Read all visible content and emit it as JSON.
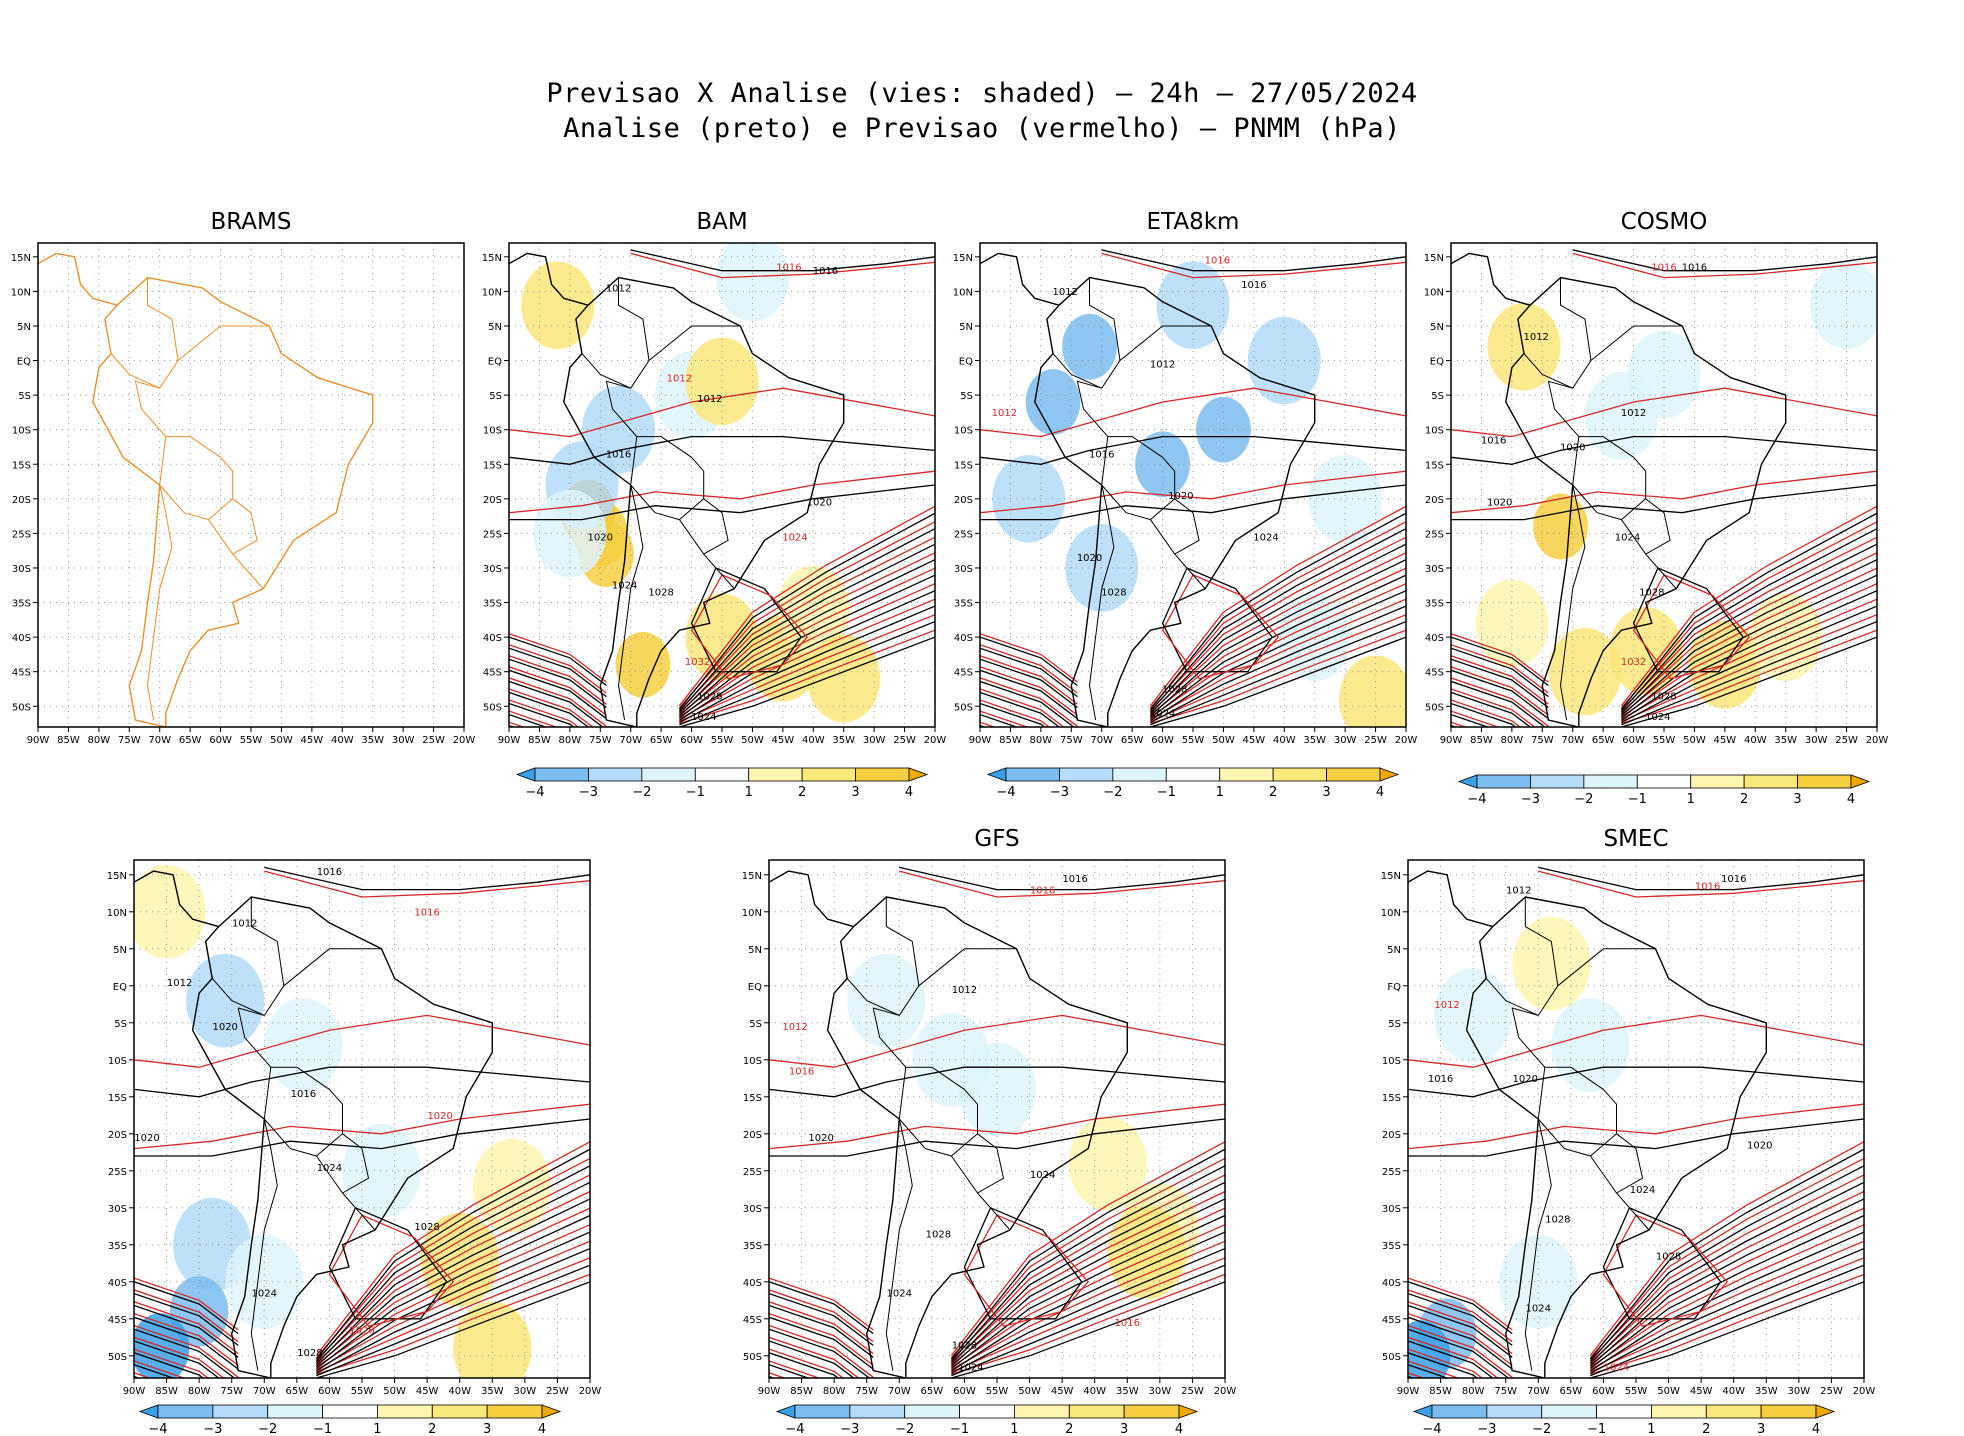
{
  "figure": {
    "title_line1": "Previsao X Analise (vies: shaded) — 24h — 27/05/2024",
    "title_line2": "Analise (preto) e Previsao (vermelho) — PNMM (hPa)"
  },
  "colors": {
    "analysis_contour": "#000000",
    "forecast_contour": "#d62828",
    "coastline_brams": "#e8902e",
    "bias_neg4": "#3aa0e8",
    "bias_neg3": "#7bbdf0",
    "bias_neg2": "#b4dbf8",
    "bias_neg1": "#def4fb",
    "bias_pos1": "#fdf6b0",
    "bias_pos2": "#fbe87a",
    "bias_pos3": "#f5cf3f",
    "bias_pos4": "#f0a800"
  },
  "colorbar": {
    "labels": [
      "−4",
      "−3",
      "−2",
      "−1",
      "1",
      "2",
      "3",
      "4"
    ]
  },
  "chart_data": [
    {
      "type": "heatmap",
      "title": "BRAMS",
      "has_data": false,
      "x_ticks": [
        "90W",
        "85W",
        "80W",
        "75W",
        "70W",
        "65W",
        "60W",
        "55W",
        "50W",
        "45W",
        "40W",
        "35W",
        "30W",
        "25W",
        "20W"
      ],
      "y_ticks": [
        "15N",
        "10N",
        "5N",
        "EQ",
        "5S",
        "10S",
        "15S",
        "20S",
        "25S",
        "30S",
        "35S",
        "40S",
        "45S",
        "50S"
      ],
      "xlim": [
        -90,
        -20
      ],
      "ylim": [
        -53,
        17
      ],
      "contour_labels": []
    },
    {
      "type": "heatmap",
      "title": "BAM",
      "has_data": true,
      "x_ticks": [
        "90W",
        "85W",
        "80W",
        "75W",
        "70W",
        "65W",
        "60W",
        "55W",
        "50W",
        "45W",
        "40W",
        "35W",
        "30W",
        "25W",
        "20W"
      ],
      "y_ticks": [
        "15N",
        "10N",
        "5N",
        "EQ",
        "5S",
        "10S",
        "15S",
        "20S",
        "25S",
        "30S",
        "35S",
        "40S",
        "45S",
        "50S"
      ],
      "xlim": [
        -90,
        -20
      ],
      "ylim": [
        -53,
        17
      ],
      "bias_cells": [
        {
          "lon": -77,
          "lat": -22,
          "v": 4
        },
        {
          "lon": -75,
          "lat": -25,
          "v": 3
        },
        {
          "lon": -74,
          "lat": -28,
          "v": 3
        },
        {
          "lon": -68,
          "lat": -44,
          "v": 3
        },
        {
          "lon": -55,
          "lat": -40,
          "v": 2
        },
        {
          "lon": -45,
          "lat": -43,
          "v": 2
        },
        {
          "lon": -40,
          "lat": -36,
          "v": 1
        },
        {
          "lon": -35,
          "lat": -46,
          "v": 2
        },
        {
          "lon": -78,
          "lat": -18,
          "v": -2
        },
        {
          "lon": -80,
          "lat": -25,
          "v": -1
        },
        {
          "lon": -72,
          "lat": -10,
          "v": -2
        },
        {
          "lon": -60,
          "lat": -5,
          "v": -1
        },
        {
          "lon": -50,
          "lat": 12,
          "v": -1
        },
        {
          "lon": -82,
          "lat": 8,
          "v": 2
        },
        {
          "lon": -55,
          "lat": -3,
          "v": 2
        }
      ],
      "contour_labels": [
        {
          "text": "1016",
          "lon": -44,
          "lat": 13,
          "color": "forecast"
        },
        {
          "text": "1016",
          "lon": -38,
          "lat": 12.5,
          "color": "analysis"
        },
        {
          "text": "1012",
          "lon": -72,
          "lat": 10,
          "color": "analysis"
        },
        {
          "text": "1012",
          "lon": -57,
          "lat": -6,
          "color": "analysis"
        },
        {
          "text": "1012",
          "lon": -62,
          "lat": -3,
          "color": "forecast"
        },
        {
          "text": "1016",
          "lon": -72,
          "lat": -14,
          "color": "analysis"
        },
        {
          "text": "1020",
          "lon": -75,
          "lat": -26,
          "color": "analysis"
        },
        {
          "text": "1024",
          "lon": -71,
          "lat": -33,
          "color": "analysis"
        },
        {
          "text": "1028",
          "lon": -65,
          "lat": -34,
          "color": "analysis"
        },
        {
          "text": "1020",
          "lon": -39,
          "lat": -21,
          "color": "analysis"
        },
        {
          "text": "1024",
          "lon": -43,
          "lat": -26,
          "color": "forecast"
        },
        {
          "text": "1032",
          "lon": -59,
          "lat": -44,
          "color": "forecast"
        },
        {
          "text": "1028",
          "lon": -57,
          "lat": -49,
          "color": "analysis"
        },
        {
          "text": "1024",
          "lon": -58,
          "lat": -52,
          "color": "analysis"
        }
      ]
    },
    {
      "type": "heatmap",
      "title": "ETA8km",
      "has_data": true,
      "x_ticks": [
        "90W",
        "85W",
        "80W",
        "75W",
        "70W",
        "65W",
        "60W",
        "55W",
        "50W",
        "45W",
        "40W",
        "35W",
        "30W",
        "25W",
        "20W"
      ],
      "y_ticks": [
        "15N",
        "10N",
        "5N",
        "EQ",
        "5S",
        "10S",
        "15S",
        "20S",
        "25S",
        "30S",
        "35S",
        "40S",
        "45S",
        "50S"
      ],
      "xlim": [
        -90,
        -20
      ],
      "ylim": [
        -53,
        17
      ],
      "bias_cells": [
        {
          "lon": -78,
          "lat": -6,
          "v": -3
        },
        {
          "lon": -72,
          "lat": 2,
          "v": -3
        },
        {
          "lon": -60,
          "lat": -15,
          "v": -3
        },
        {
          "lon": -50,
          "lat": -10,
          "v": -3
        },
        {
          "lon": -82,
          "lat": -20,
          "v": -2
        },
        {
          "lon": -70,
          "lat": -30,
          "v": -2
        },
        {
          "lon": -40,
          "lat": 0,
          "v": -2
        },
        {
          "lon": -30,
          "lat": -20,
          "v": -1
        },
        {
          "lon": -55,
          "lat": 8,
          "v": -2
        },
        {
          "lon": -35,
          "lat": -40,
          "v": -1
        },
        {
          "lon": -25,
          "lat": -49,
          "v": 2
        }
      ],
      "contour_labels": [
        {
          "text": "1016",
          "lon": -51,
          "lat": 14,
          "color": "forecast"
        },
        {
          "text": "1016",
          "lon": -45,
          "lat": 10.5,
          "color": "analysis"
        },
        {
          "text": "1012",
          "lon": -76,
          "lat": 9.5,
          "color": "analysis"
        },
        {
          "text": "1012",
          "lon": -60,
          "lat": -1,
          "color": "analysis"
        },
        {
          "text": "1012",
          "lon": -86,
          "lat": -8,
          "color": "forecast"
        },
        {
          "text": "1016",
          "lon": -70,
          "lat": -14,
          "color": "analysis"
        },
        {
          "text": "1020",
          "lon": -57,
          "lat": -20,
          "color": "analysis"
        },
        {
          "text": "1024",
          "lon": -43,
          "lat": -26,
          "color": "analysis"
        },
        {
          "text": "1020",
          "lon": -72,
          "lat": -29,
          "color": "analysis"
        },
        {
          "text": "1028",
          "lon": -68,
          "lat": -34,
          "color": "analysis"
        },
        {
          "text": "1028",
          "lon": -58,
          "lat": -48,
          "color": "analysis"
        },
        {
          "text": "1024",
          "lon": -60,
          "lat": -51.5,
          "color": "analysis"
        }
      ]
    },
    {
      "type": "heatmap",
      "title": "COSMO",
      "has_data": true,
      "x_ticks": [
        "90W",
        "85W",
        "80W",
        "75W",
        "70W",
        "65W",
        "60W",
        "55W",
        "50W",
        "45W",
        "40W",
        "35W",
        "30W",
        "25W",
        "20W"
      ],
      "y_ticks": [
        "15N",
        "10N",
        "5N",
        "EQ",
        "5S",
        "10S",
        "15S",
        "20S",
        "25S",
        "30S",
        "35S",
        "40S",
        "45S",
        "50S"
      ],
      "xlim": [
        -90,
        -20
      ],
      "ylim": [
        -53,
        17
      ],
      "bias_cells": [
        {
          "lon": -72,
          "lat": -24,
          "v": 3
        },
        {
          "lon": -68,
          "lat": -45,
          "v": 2
        },
        {
          "lon": -58,
          "lat": -42,
          "v": 2
        },
        {
          "lon": -45,
          "lat": -44,
          "v": 2
        },
        {
          "lon": -35,
          "lat": -40,
          "v": 1
        },
        {
          "lon": -80,
          "lat": -38,
          "v": 1
        },
        {
          "lon": -62,
          "lat": -8,
          "v": -1
        },
        {
          "lon": -55,
          "lat": -2,
          "v": -1
        },
        {
          "lon": -25,
          "lat": 8,
          "v": -1
        },
        {
          "lon": -78,
          "lat": 2,
          "v": 2
        }
      ],
      "contour_labels": [
        {
          "text": "1016",
          "lon": -55,
          "lat": 13,
          "color": "forecast"
        },
        {
          "text": "1016",
          "lon": -50,
          "lat": 13,
          "color": "analysis"
        },
        {
          "text": "1012",
          "lon": -76,
          "lat": 3,
          "color": "analysis"
        },
        {
          "text": "1012",
          "lon": -60,
          "lat": -8,
          "color": "analysis"
        },
        {
          "text": "1016",
          "lon": -83,
          "lat": -12,
          "color": "analysis"
        },
        {
          "text": "1020",
          "lon": -70,
          "lat": -13,
          "color": "analysis"
        },
        {
          "text": "1020",
          "lon": -82,
          "lat": -21,
          "color": "analysis"
        },
        {
          "text": "1024",
          "lon": -61,
          "lat": -26,
          "color": "analysis"
        },
        {
          "text": "1028",
          "lon": -57,
          "lat": -34,
          "color": "analysis"
        },
        {
          "text": "1032",
          "lon": -60,
          "lat": -44,
          "color": "forecast"
        },
        {
          "text": "1028",
          "lon": -55,
          "lat": -49,
          "color": "analysis"
        },
        {
          "text": "1024",
          "lon": -56,
          "lat": -52,
          "color": "analysis"
        }
      ]
    },
    {
      "type": "heatmap",
      "title": "",
      "has_data": true,
      "x_ticks": [
        "90W",
        "85W",
        "80W",
        "75W",
        "70W",
        "65W",
        "60W",
        "55W",
        "50W",
        "45W",
        "40W",
        "35W",
        "30W",
        "25W",
        "20W"
      ],
      "y_ticks": [
        "15N",
        "10N",
        "5N",
        "EQ",
        "5S",
        "10S",
        "15S",
        "20S",
        "25S",
        "30S",
        "35S",
        "40S",
        "45S",
        "50S"
      ],
      "xlim": [
        -90,
        -20
      ],
      "ylim": [
        -53,
        17
      ],
      "bias_cells": [
        {
          "lon": -85,
          "lat": 10,
          "v": 1
        },
        {
          "lon": -76,
          "lat": -2,
          "v": -2
        },
        {
          "lon": -64,
          "lat": -8,
          "v": -1
        },
        {
          "lon": -78,
          "lat": -35,
          "v": -2
        },
        {
          "lon": -80,
          "lat": -44,
          "v": -3
        },
        {
          "lon": -86,
          "lat": -49,
          "v": -4
        },
        {
          "lon": -70,
          "lat": -40,
          "v": -1
        },
        {
          "lon": -40,
          "lat": -37,
          "v": 2
        },
        {
          "lon": -35,
          "lat": -49,
          "v": 2
        },
        {
          "lon": -32,
          "lat": -27,
          "v": 1
        },
        {
          "lon": -52,
          "lat": -25,
          "v": -1
        }
      ],
      "contour_labels": [
        {
          "text": "1016",
          "lon": -60,
          "lat": 15,
          "color": "analysis"
        },
        {
          "text": "1016",
          "lon": -45,
          "lat": 9.5,
          "color": "forecast"
        },
        {
          "text": "1012",
          "lon": -73,
          "lat": 8,
          "color": "analysis"
        },
        {
          "text": "1012",
          "lon": -83,
          "lat": 0,
          "color": "analysis"
        },
        {
          "text": "1020",
          "lon": -76,
          "lat": -6,
          "color": "analysis"
        },
        {
          "text": "1016",
          "lon": -64,
          "lat": -15,
          "color": "analysis"
        },
        {
          "text": "1020",
          "lon": -88,
          "lat": -21,
          "color": "analysis"
        },
        {
          "text": "1020",
          "lon": -43,
          "lat": -18,
          "color": "forecast"
        },
        {
          "text": "1024",
          "lon": -60,
          "lat": -25,
          "color": "analysis"
        },
        {
          "text": "1028",
          "lon": -45,
          "lat": -33,
          "color": "analysis"
        },
        {
          "text": "1024",
          "lon": -70,
          "lat": -42,
          "color": "analysis"
        },
        {
          "text": "1026",
          "lon": -55,
          "lat": -47,
          "color": "forecast"
        },
        {
          "text": "1028",
          "lon": -63,
          "lat": -50,
          "color": "analysis"
        }
      ]
    },
    {
      "type": "heatmap",
      "title": "GFS",
      "has_data": true,
      "x_ticks": [
        "90W",
        "85W",
        "80W",
        "75W",
        "70W",
        "65W",
        "60W",
        "55W",
        "50W",
        "45W",
        "40W",
        "35W",
        "30W",
        "25W",
        "20W"
      ],
      "y_ticks": [
        "15N",
        "10N",
        "5N",
        "EQ",
        "5S",
        "10S",
        "15S",
        "20S",
        "25S",
        "30S",
        "35S",
        "40S",
        "45S",
        "50S"
      ],
      "xlim": [
        -90,
        -20
      ],
      "ylim": [
        -53,
        17
      ],
      "bias_cells": [
        {
          "lon": -62,
          "lat": -10,
          "v": -1
        },
        {
          "lon": -55,
          "lat": -14,
          "v": -1
        },
        {
          "lon": -72,
          "lat": -2,
          "v": -1
        },
        {
          "lon": -30,
          "lat": -33,
          "v": 1
        },
        {
          "lon": -32,
          "lat": -36,
          "v": 2
        },
        {
          "lon": -38,
          "lat": -24,
          "v": 1
        }
      ],
      "contour_labels": [
        {
          "text": "1016",
          "lon": -43,
          "lat": 14,
          "color": "analysis"
        },
        {
          "text": "1016",
          "lon": -48,
          "lat": 12.5,
          "color": "forecast"
        },
        {
          "text": "1012",
          "lon": -86,
          "lat": -6,
          "color": "forecast"
        },
        {
          "text": "1012",
          "lon": -60,
          "lat": -1,
          "color": "analysis"
        },
        {
          "text": "1016",
          "lon": -85,
          "lat": -12,
          "color": "forecast"
        },
        {
          "text": "1020",
          "lon": -82,
          "lat": -21,
          "color": "analysis"
        },
        {
          "text": "1024",
          "lon": -48,
          "lat": -26,
          "color": "analysis"
        },
        {
          "text": "1028",
          "lon": -64,
          "lat": -34,
          "color": "analysis"
        },
        {
          "text": "1024",
          "lon": -70,
          "lat": -42,
          "color": "analysis"
        },
        {
          "text": "1016",
          "lon": -35,
          "lat": -46,
          "color": "forecast"
        },
        {
          "text": "1028",
          "lon": -60,
          "lat": -49,
          "color": "analysis"
        },
        {
          "text": "1024",
          "lon": -59,
          "lat": -52,
          "color": "analysis"
        }
      ]
    },
    {
      "type": "heatmap",
      "title": "SMEC",
      "has_data": true,
      "x_ticks": [
        "90W",
        "85W",
        "80W",
        "75W",
        "70W",
        "65W",
        "60W",
        "55W",
        "50W",
        "45W",
        "40W",
        "35W",
        "30W",
        "25W",
        "20W"
      ],
      "y_ticks": [
        "15N",
        "10N",
        "5N",
        "FQ",
        "5S",
        "10S",
        "15S",
        "20S",
        "25S",
        "30S",
        "35S",
        "40S",
        "45S",
        "50S"
      ],
      "xlim": [
        -90,
        -20
      ],
      "ylim": [
        -53,
        17
      ],
      "bias_cells": [
        {
          "lon": -80,
          "lat": -4,
          "v": -1
        },
        {
          "lon": -84,
          "lat": -47,
          "v": -3
        },
        {
          "lon": -88,
          "lat": -50,
          "v": -4
        },
        {
          "lon": -70,
          "lat": -40,
          "v": -1
        },
        {
          "lon": -62,
          "lat": -8,
          "v": -1
        },
        {
          "lon": -68,
          "lat": 3,
          "v": 1
        }
      ],
      "contour_labels": [
        {
          "text": "1016",
          "lon": -40,
          "lat": 14,
          "color": "analysis"
        },
        {
          "text": "1016",
          "lon": -44,
          "lat": 13,
          "color": "forecast"
        },
        {
          "text": "1012",
          "lon": -73,
          "lat": 12.5,
          "color": "analysis"
        },
        {
          "text": "1012",
          "lon": -84,
          "lat": -3,
          "color": "forecast"
        },
        {
          "text": "1016",
          "lon": -85,
          "lat": -13,
          "color": "analysis"
        },
        {
          "text": "1020",
          "lon": -72,
          "lat": -13,
          "color": "analysis"
        },
        {
          "text": "1020",
          "lon": -36,
          "lat": -22,
          "color": "analysis"
        },
        {
          "text": "1024",
          "lon": -54,
          "lat": -28,
          "color": "analysis"
        },
        {
          "text": "1028",
          "lon": -67,
          "lat": -32,
          "color": "analysis"
        },
        {
          "text": "1028",
          "lon": -50,
          "lat": -37,
          "color": "analysis"
        },
        {
          "text": "1024",
          "lon": -70,
          "lat": -44,
          "color": "analysis"
        },
        {
          "text": "1024",
          "lon": -58,
          "lat": -52,
          "color": "forecast"
        }
      ]
    }
  ]
}
